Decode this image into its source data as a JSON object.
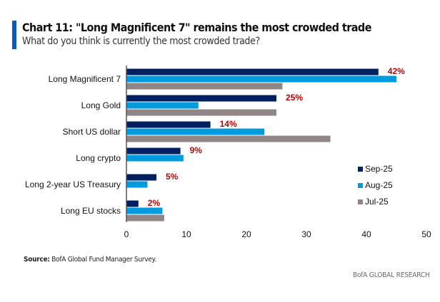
{
  "header": {
    "title": "Chart 11: \"Long Magnificent 7\" remains the most crowded trade",
    "subtitle": "What do you think is currently the most crowded trade?"
  },
  "footer": {
    "source_label": "Source:",
    "source_text": " BofA Global Fund Manager Survey.",
    "brand": "BofA GLOBAL RESEARCH"
  },
  "colors": {
    "accent": "#0a5ac2",
    "data_label": "#c00000"
  },
  "chart_data": {
    "type": "bar",
    "orientation": "horizontal",
    "title": "Chart 11: \"Long Magnificent 7\" remains the most crowded trade",
    "subtitle": "What do you think is currently the most crowded trade?",
    "xlabel": "",
    "ylabel": "",
    "xlim": [
      0,
      50
    ],
    "xticks": [
      0,
      10,
      20,
      30,
      40,
      50
    ],
    "grid": false,
    "legend_position": "right",
    "categories": [
      "Long Magnificent 7",
      "Long Gold",
      "Short US dollar",
      "Long crypto",
      "Long 2-year US Treasury",
      "Long EU stocks"
    ],
    "series": [
      {
        "name": "Sep-25",
        "color": "#002060",
        "values": [
          42,
          25,
          14,
          9,
          5,
          2
        ]
      },
      {
        "name": "Aug-25",
        "color": "#009ade",
        "values": [
          45,
          12,
          23,
          9.5,
          3.5,
          6
        ]
      },
      {
        "name": "Jul-25",
        "color": "#908685",
        "values": [
          26,
          25,
          34,
          0,
          0,
          6.3
        ]
      }
    ],
    "data_labels": [
      "42%",
      "25%",
      "14%",
      "9%",
      "5%",
      "2%"
    ],
    "data_label_series": "Sep-25"
  }
}
